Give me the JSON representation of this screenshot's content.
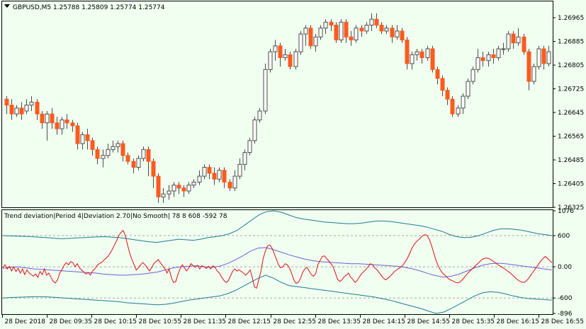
{
  "header": {
    "symbol_line": "GBPUSD,M5  1.25788 1.25809 1.25774 1.25774"
  },
  "indicator": {
    "caption": "Trend deviation|Period 4|Deviation 2.70|No Smooth| 78 8 608 -592 78"
  },
  "colors": {
    "background": "#f0fff0",
    "bull_body": "#ffffff",
    "bear_body": "#ff5a1e",
    "candle_outline": "#4d4d4d",
    "upper_band": "#1f7a96",
    "lower_band": "#1f7a96",
    "signal": "#e01010",
    "mid": "#6f5fd6",
    "level": "#a8a8a8"
  },
  "chart_data": [
    {
      "type": "candlestick",
      "title": "GBPUSD,M5",
      "ylim": [
        1.26325,
        1.2702
      ],
      "yticks": [
        "1.26965",
        "1.26885",
        "1.26805",
        "1.26725",
        "1.26645",
        "1.26565",
        "1.26485",
        "1.26405",
        "1.26325"
      ],
      "ytick_values": [
        1.26965,
        1.26885,
        1.26805,
        1.26725,
        1.26645,
        1.26565,
        1.26485,
        1.26405,
        1.26325
      ],
      "candles": [
        [
          1.2669,
          1.2667,
          1.267,
          1.2664
        ],
        [
          1.2667,
          1.2664,
          1.2669,
          1.2662
        ],
        [
          1.2664,
          1.2666,
          1.2667,
          1.2663
        ],
        [
          1.2666,
          1.2664,
          1.2668,
          1.2662
        ],
        [
          1.2665,
          1.2667,
          1.2669,
          1.2664
        ],
        [
          1.2667,
          1.2668,
          1.267,
          1.2665
        ],
        [
          1.2668,
          1.2664,
          1.2669,
          1.2662
        ],
        [
          1.2664,
          1.2661,
          1.2665,
          1.2659
        ],
        [
          1.2661,
          1.2664,
          1.2665,
          1.2655
        ],
        [
          1.2664,
          1.2661,
          1.2666,
          1.2659
        ],
        [
          1.2661,
          1.2659,
          1.2663,
          1.2657
        ],
        [
          1.2659,
          1.2662,
          1.2663,
          1.2657
        ],
        [
          1.2662,
          1.2661,
          1.2664,
          1.2659
        ],
        [
          1.2661,
          1.266,
          1.2662,
          1.2658
        ],
        [
          1.266,
          1.2654,
          1.2661,
          1.2652
        ],
        [
          1.2654,
          1.2657,
          1.2658,
          1.2652
        ],
        [
          1.2657,
          1.2655,
          1.2659,
          1.2652
        ],
        [
          1.2655,
          1.2652,
          1.2656,
          1.265
        ],
        [
          1.2652,
          1.2649,
          1.2653,
          1.2647
        ],
        [
          1.2649,
          1.265,
          1.2652,
          1.2646
        ],
        [
          1.265,
          1.2652,
          1.2654,
          1.2649
        ],
        [
          1.2652,
          1.2653,
          1.2655,
          1.2651
        ],
        [
          1.2653,
          1.2654,
          1.2655,
          1.2651
        ],
        [
          1.2654,
          1.265,
          1.2655,
          1.2648
        ],
        [
          1.265,
          1.2648,
          1.2651,
          1.2647
        ],
        [
          1.2648,
          1.2646,
          1.2649,
          1.2644
        ],
        [
          1.2646,
          1.2649,
          1.265,
          1.2645
        ],
        [
          1.2649,
          1.2652,
          1.2653,
          1.2648
        ],
        [
          1.2652,
          1.2648,
          1.2653,
          1.2643
        ],
        [
          1.2648,
          1.2643,
          1.2649,
          1.2639
        ],
        [
          1.2643,
          1.2636,
          1.2644,
          1.2634
        ],
        [
          1.2636,
          1.2637,
          1.2639,
          1.2634
        ],
        [
          1.2637,
          1.2638,
          1.264,
          1.2635
        ],
        [
          1.2638,
          1.264,
          1.2641,
          1.2636
        ],
        [
          1.264,
          1.2639,
          1.2641,
          1.2637
        ],
        [
          1.2639,
          1.2638,
          1.264,
          1.2636
        ],
        [
          1.2638,
          1.264,
          1.2641,
          1.2637
        ],
        [
          1.264,
          1.2641,
          1.2642,
          1.2639
        ],
        [
          1.2641,
          1.2643,
          1.2645,
          1.264
        ],
        [
          1.2643,
          1.2646,
          1.2647,
          1.2642
        ],
        [
          1.2646,
          1.2644,
          1.2647,
          1.2642
        ],
        [
          1.2644,
          1.2642,
          1.2646,
          1.264
        ],
        [
          1.2642,
          1.2645,
          1.2646,
          1.2641
        ],
        [
          1.2645,
          1.2641,
          1.2646,
          1.2639
        ],
        [
          1.2641,
          1.2639,
          1.2642,
          1.2638
        ],
        [
          1.2639,
          1.2643,
          1.2645,
          1.2638
        ],
        [
          1.2643,
          1.2647,
          1.2649,
          1.2642
        ],
        [
          1.2647,
          1.2651,
          1.2652,
          1.2645
        ],
        [
          1.2651,
          1.2655,
          1.2656,
          1.265
        ],
        [
          1.2655,
          1.2662,
          1.2663,
          1.2654
        ],
        [
          1.2662,
          1.2665,
          1.2666,
          1.2661
        ],
        [
          1.2665,
          1.2679,
          1.2681,
          1.2664
        ],
        [
          1.2679,
          1.2685,
          1.2686,
          1.2678
        ],
        [
          1.2685,
          1.2687,
          1.2689,
          1.2682
        ],
        [
          1.2687,
          1.2683,
          1.2688,
          1.268
        ],
        [
          1.2683,
          1.2684,
          1.2686,
          1.2682
        ],
        [
          1.2684,
          1.268,
          1.2685,
          1.2679
        ],
        [
          1.268,
          1.2685,
          1.2686,
          1.2679
        ],
        [
          1.2685,
          1.2691,
          1.2692,
          1.2684
        ],
        [
          1.2691,
          1.2693,
          1.2694,
          1.2687
        ],
        [
          1.2693,
          1.2687,
          1.2694,
          1.2686
        ],
        [
          1.2687,
          1.269,
          1.2691,
          1.2685
        ],
        [
          1.269,
          1.2693,
          1.2694,
          1.2689
        ],
        [
          1.2693,
          1.2695,
          1.2696,
          1.2691
        ],
        [
          1.2695,
          1.2694,
          1.2696,
          1.2692
        ],
        [
          1.2694,
          1.2689,
          1.2695,
          1.2688
        ],
        [
          1.2689,
          1.2695,
          1.2696,
          1.2688
        ],
        [
          1.2695,
          1.269,
          1.2696,
          1.2688
        ],
        [
          1.269,
          1.2689,
          1.2692,
          1.2687
        ],
        [
          1.2689,
          1.2693,
          1.2694,
          1.2688
        ],
        [
          1.2693,
          1.2692,
          1.2694,
          1.269
        ],
        [
          1.2692,
          1.2694,
          1.2695,
          1.2691
        ],
        [
          1.2694,
          1.2696,
          1.2698,
          1.2692
        ],
        [
          1.2696,
          1.2694,
          1.2698,
          1.2693
        ],
        [
          1.2694,
          1.2692,
          1.2695,
          1.2691
        ],
        [
          1.2692,
          1.2693,
          1.2694,
          1.2691
        ],
        [
          1.2693,
          1.269,
          1.2694,
          1.2688
        ],
        [
          1.269,
          1.2692,
          1.2694,
          1.2689
        ],
        [
          1.2692,
          1.2689,
          1.2693,
          1.2688
        ],
        [
          1.2689,
          1.2681,
          1.269,
          1.2679
        ],
        [
          1.2681,
          1.2684,
          1.2685,
          1.2679
        ],
        [
          1.2684,
          1.2685,
          1.2686,
          1.2682
        ],
        [
          1.2685,
          1.2683,
          1.2686,
          1.2681
        ],
        [
          1.2683,
          1.2686,
          1.2687,
          1.2682
        ],
        [
          1.2686,
          1.2679,
          1.2687,
          1.2678
        ],
        [
          1.2679,
          1.2676,
          1.268,
          1.2674
        ],
        [
          1.2676,
          1.2672,
          1.2677,
          1.267
        ],
        [
          1.2672,
          1.2669,
          1.2673,
          1.2667
        ],
        [
          1.2669,
          1.2664,
          1.267,
          1.2663
        ],
        [
          1.2664,
          1.2666,
          1.2667,
          1.2663
        ],
        [
          1.2666,
          1.267,
          1.2671,
          1.2664
        ],
        [
          1.267,
          1.2675,
          1.2676,
          1.2669
        ],
        [
          1.2675,
          1.2679,
          1.268,
          1.2674
        ],
        [
          1.2679,
          1.2683,
          1.2686,
          1.2678
        ],
        [
          1.2683,
          1.2682,
          1.2685,
          1.268
        ],
        [
          1.2682,
          1.2684,
          1.2685,
          1.268
        ],
        [
          1.2684,
          1.2683,
          1.2686,
          1.2681
        ],
        [
          1.2683,
          1.2686,
          1.2687,
          1.2682
        ],
        [
          1.2686,
          1.2686,
          1.2688,
          1.2684
        ],
        [
          1.2686,
          1.2691,
          1.2692,
          1.2685
        ],
        [
          1.2691,
          1.2688,
          1.2692,
          1.2686
        ],
        [
          1.2688,
          1.269,
          1.2693,
          1.2687
        ],
        [
          1.269,
          1.2685,
          1.2691,
          1.2684
        ],
        [
          1.2685,
          1.2675,
          1.2686,
          1.2672
        ],
        [
          1.2675,
          1.268,
          1.2681,
          1.2674
        ],
        [
          1.268,
          1.2686,
          1.2687,
          1.2679
        ],
        [
          1.2686,
          1.2681,
          1.2687,
          1.2679
        ],
        [
          1.2681,
          1.2685,
          1.2687,
          1.268
        ]
      ]
    },
    {
      "type": "line",
      "title": "Trend deviation",
      "ylim": [
        -896,
        1076
      ],
      "yticks": [
        "1076",
        "600",
        "0.00",
        "-600",
        "-896"
      ],
      "ytick_values": [
        1076,
        600,
        0,
        -600,
        -896
      ],
      "levels": [
        600,
        0,
        -600
      ],
      "series": [
        {
          "values": [
            600,
            595,
            590,
            585,
            580,
            570,
            560,
            550,
            540,
            545,
            555,
            560,
            570,
            575,
            580,
            570,
            560,
            540,
            520,
            500,
            480,
            470,
            490,
            510,
            530,
            520,
            510,
            530,
            560,
            580,
            600,
            640,
            700,
            800,
            900,
            1000,
            1060,
            1076,
            1050,
            1000,
            950,
            920,
            900,
            880,
            860,
            850,
            840,
            830,
            830,
            840,
            860,
            880,
            880,
            870,
            850,
            830,
            810,
            790,
            760,
            720,
            680,
            620,
            580,
            560,
            570,
            600,
            650,
            700,
            730,
            730,
            720,
            700,
            670,
            640,
            620,
            600
          ]
        },
        {
          "values": [
            -600,
            -590,
            -585,
            -580,
            -575,
            -575,
            -580,
            -590,
            -600,
            -610,
            -620,
            -630,
            -640,
            -650,
            -660,
            -670,
            -690,
            -700,
            -710,
            -720,
            -730,
            -720,
            -700,
            -670,
            -640,
            -620,
            -600,
            -580,
            -560,
            -520,
            -460,
            -380,
            -300,
            -220,
            -160,
            -220,
            -300,
            -360,
            -380,
            -400,
            -420,
            -440,
            -460,
            -480,
            -500,
            -520,
            -540,
            -560,
            -580,
            -610,
            -640,
            -680,
            -720,
            -760,
            -800,
            -850,
            -896,
            -870,
            -800,
            -720,
            -640,
            -560,
            -500,
            -480,
            -490,
            -520,
            -560,
            -590,
            -610,
            -620,
            -630,
            -640
          ]
        },
        {
          "values": [
            -30,
            -10,
            0,
            -20,
            -40,
            -50,
            -60,
            -70,
            -80,
            -90,
            -100,
            -110,
            -120,
            -140,
            -150,
            -160,
            -160,
            -150,
            -140,
            -120,
            -100,
            -60,
            -20,
            0,
            10,
            20,
            0,
            -10,
            10,
            60,
            130,
            210,
            300,
            360,
            370,
            330,
            280,
            230,
            190,
            150,
            120,
            100,
            90,
            80,
            70,
            60,
            60,
            50,
            40,
            30,
            20,
            10,
            -10,
            -40,
            -80,
            -130,
            -170,
            -200,
            -180,
            -140,
            -80,
            -20,
            30,
            60,
            70,
            60,
            40,
            20,
            0,
            -20,
            -40,
            -60
          ]
        },
        {
          "values": [
            -20,
            40,
            -40,
            10,
            -80,
            0,
            -90,
            -30,
            -120,
            -40,
            -150,
            -60,
            -120,
            -150,
            -180,
            -140,
            -200,
            -90,
            -150,
            -40,
            -160,
            -120,
            -200,
            -280,
            -310,
            -250,
            -120,
            -60,
            30,
            80,
            40,
            100,
            80,
            0,
            60,
            -20,
            -60,
            -100,
            -140,
            -110,
            -160,
            -80,
            -40,
            20,
            60,
            80,
            120,
            160,
            200,
            260,
            330,
            420,
            500,
            600,
            660,
            700,
            600,
            420,
            260,
            140,
            40,
            -60,
            -20,
            40,
            80,
            40,
            -20,
            -80,
            -20,
            60,
            100,
            140,
            80,
            20,
            -30,
            -120,
            -40,
            -200,
            -300,
            -290,
            -150,
            -40,
            40,
            -20,
            -80,
            -20,
            60,
            20,
            -10,
            30,
            -40,
            20,
            0,
            -30,
            10,
            -40,
            20,
            -10,
            -80,
            -120,
            -200,
            -260,
            -300,
            -270,
            -180,
            -90,
            -40,
            -80,
            -60,
            -90,
            -120,
            -160,
            -120,
            -60,
            -200,
            -390,
            -410,
            -240,
            -80,
            160,
            300,
            400,
            420,
            360,
            260,
            150,
            40,
            -20,
            0,
            60,
            40,
            -20,
            -130,
            -250,
            -320,
            -300,
            -230,
            -110,
            -40,
            -10,
            -80,
            -150,
            -180,
            -130,
            40,
            120,
            200,
            210,
            160,
            110,
            60,
            0,
            -120,
            -240,
            -280,
            -250,
            -190,
            -160,
            -120,
            -200,
            -240,
            -300,
            -260,
            -190,
            -130,
            -90,
            -50,
            0,
            60,
            40,
            -20,
            -60,
            -110,
            -170,
            -220,
            -250,
            -220,
            -180,
            -140,
            -90,
            -60,
            -30,
            0,
            40,
            100,
            170,
            260,
            360,
            430,
            480,
            520,
            560,
            600,
            620,
            600,
            520,
            400,
            260,
            120,
            20,
            -60,
            -120,
            -160,
            -200,
            -240,
            -260,
            -280,
            -300,
            -310,
            -290,
            -250,
            -200,
            -150,
            -100,
            -60,
            -20,
            20,
            60,
            100,
            140,
            160,
            170,
            160,
            140,
            110,
            80,
            50,
            20,
            0,
            -30,
            -60,
            -90,
            -120,
            -160,
            -200,
            -240,
            -270,
            -290,
            -300,
            -280,
            -240,
            -180,
            -120,
            -60,
            0,
            60,
            120,
            160,
            200,
            160,
            120,
            78
          ]
        }
      ]
    }
  ],
  "xaxis": {
    "labels": [
      "28 Dec 2018",
      "28 Dec 09:35",
      "28 Dec 10:15",
      "28 Dec 10:55",
      "28 Dec 11:35",
      "28 Dec 12:15",
      "28 Dec 12:55",
      "28 Dec 13:35",
      "28 Dec 14:15",
      "28 Dec 14:55",
      "28 Dec 15:35",
      "28 Dec 16:15",
      "28 Dec 16:55"
    ]
  }
}
